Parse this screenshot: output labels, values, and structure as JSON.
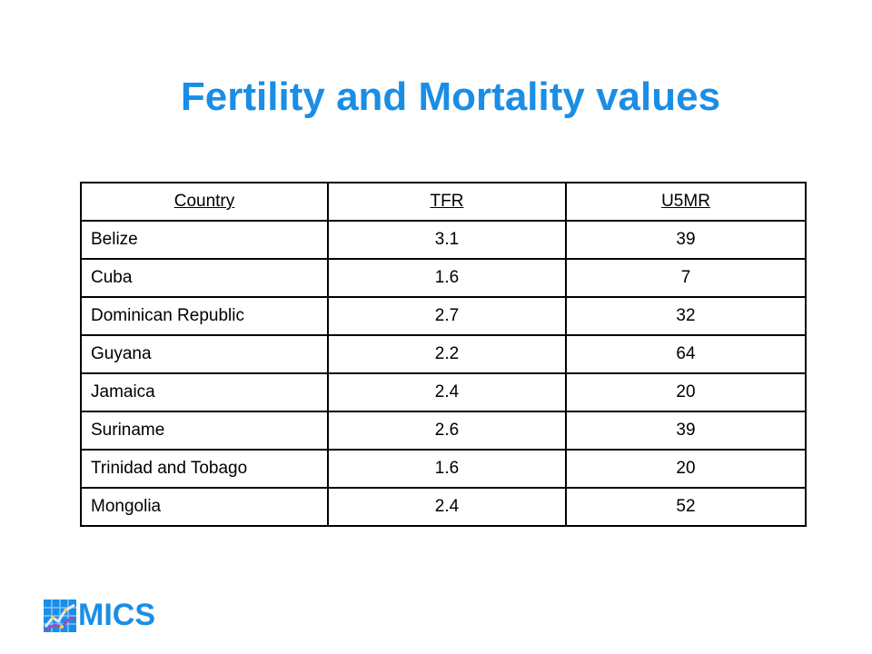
{
  "slide": {
    "title": "Fertility and Mortality values"
  },
  "table": {
    "headers": [
      "Country",
      "TFR",
      "U5MR"
    ],
    "rows": [
      [
        "Belize",
        "3.1",
        "39"
      ],
      [
        "Cuba",
        "1.6",
        "7"
      ],
      [
        "Dominican Republic",
        "2.7",
        "32"
      ],
      [
        "Guyana",
        "2.2",
        "64"
      ],
      [
        "Jamaica",
        "2.4",
        "20"
      ],
      [
        "Suriname",
        "2.6",
        "39"
      ],
      [
        "Trinidad and Tobago",
        "1.6",
        "20"
      ],
      [
        "Mongolia",
        "2.4",
        "52"
      ]
    ]
  },
  "logo": {
    "text": "MICS",
    "icon": "mics-chart-logo-icon",
    "color": "#1a8ee6"
  },
  "colors": {
    "title": "#1a8ee6",
    "border": "#000000"
  }
}
